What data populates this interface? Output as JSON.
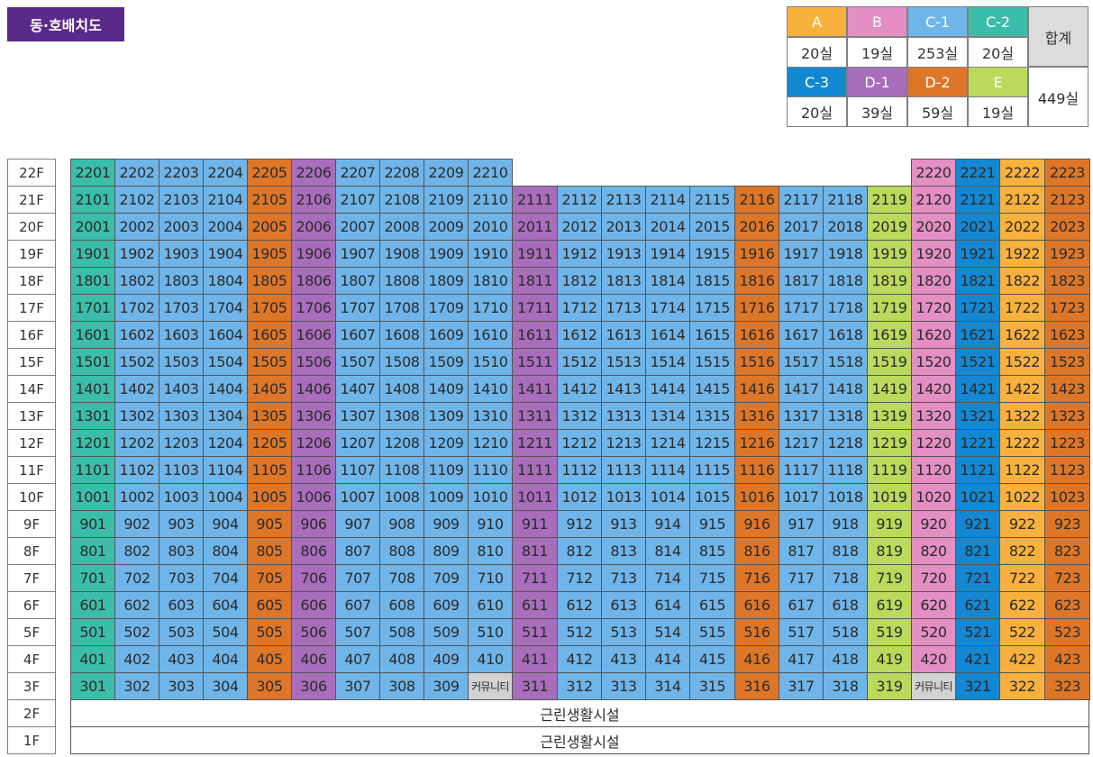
{
  "title": "동·호배치도",
  "colors": {
    "A": "#f9b13d",
    "B": "#e48fc3",
    "C-1": "#6fb5e9",
    "C-2": "#3bbea9",
    "C-3": "#1387d1",
    "D-1": "#a86dbb",
    "D-2": "#de7628",
    "E": "#bbd95b"
  },
  "legend": {
    "row1": [
      {
        "type": "A",
        "count": "20실"
      },
      {
        "type": "B",
        "count": "19실"
      },
      {
        "type": "C-1",
        "count": "253실"
      },
      {
        "type": "C-2",
        "count": "20실"
      }
    ],
    "row2": [
      {
        "type": "C-3",
        "count": "20실"
      },
      {
        "type": "D-1",
        "count": "39실"
      },
      {
        "type": "D-2",
        "count": "59실"
      },
      {
        "type": "E",
        "count": "19실"
      }
    ],
    "total_label": "합계",
    "total_value": "449실"
  },
  "floors": [
    "22F",
    "21F",
    "20F",
    "19F",
    "18F",
    "17F",
    "16F",
    "15F",
    "14F",
    "13F",
    "12F",
    "11F",
    "10F",
    "9F",
    "8F",
    "7F",
    "6F",
    "5F",
    "4F",
    "3F",
    "2F",
    "1F"
  ],
  "column_types": [
    "C-2",
    "C-1",
    "C-1",
    "C-1",
    "D-2",
    "D-1",
    "C-1",
    "C-1",
    "C-1",
    "C-1",
    "D-1",
    "C-1",
    "C-1",
    "C-1",
    "C-1",
    "D-2",
    "C-1",
    "C-1",
    "E",
    "B",
    "C-3",
    "A",
    "D-2"
  ],
  "unit_floors": [
    22,
    21,
    20,
    19,
    18,
    17,
    16,
    15,
    14,
    13,
    12,
    11,
    10,
    9,
    8,
    7,
    6,
    5,
    4,
    3
  ],
  "units": [
    [
      "2201",
      "2202",
      "2203",
      "2204",
      "2205",
      "2206",
      "2207",
      "2208",
      "2209",
      "2210",
      "",
      "",
      "",
      "",
      "",
      "",
      "",
      "",
      "",
      "2220",
      "2221",
      "2222",
      "2223"
    ],
    [
      "2101",
      "2102",
      "2103",
      "2104",
      "2105",
      "2106",
      "2107",
      "2108",
      "2109",
      "2110",
      "2111",
      "2112",
      "2113",
      "2114",
      "2115",
      "2116",
      "2117",
      "2118",
      "2119",
      "2120",
      "2121",
      "2122",
      "2123"
    ],
    [
      "2001",
      "2002",
      "2003",
      "2004",
      "2005",
      "2006",
      "2007",
      "2008",
      "2009",
      "2010",
      "2011",
      "2012",
      "2013",
      "2014",
      "2015",
      "2016",
      "2017",
      "2018",
      "2019",
      "2020",
      "2021",
      "2022",
      "2023"
    ],
    [
      "1901",
      "1902",
      "1903",
      "1904",
      "1905",
      "1906",
      "1907",
      "1908",
      "1909",
      "1910",
      "1911",
      "1912",
      "1913",
      "1914",
      "1915",
      "1916",
      "1917",
      "1918",
      "1919",
      "1920",
      "1921",
      "1922",
      "1923"
    ],
    [
      "1801",
      "1802",
      "1803",
      "1804",
      "1805",
      "1806",
      "1807",
      "1808",
      "1809",
      "1810",
      "1811",
      "1812",
      "1813",
      "1814",
      "1815",
      "1816",
      "1817",
      "1818",
      "1819",
      "1820",
      "1821",
      "1822",
      "1823"
    ],
    [
      "1701",
      "1702",
      "1703",
      "1704",
      "1705",
      "1706",
      "1707",
      "1708",
      "1709",
      "1710",
      "1711",
      "1712",
      "1713",
      "1714",
      "1715",
      "1716",
      "1717",
      "1718",
      "1719",
      "1720",
      "1721",
      "1722",
      "1723"
    ],
    [
      "1601",
      "1602",
      "1603",
      "1604",
      "1605",
      "1606",
      "1607",
      "1608",
      "1609",
      "1610",
      "1611",
      "1612",
      "1613",
      "1614",
      "1615",
      "1616",
      "1617",
      "1618",
      "1619",
      "1620",
      "1621",
      "1622",
      "1623"
    ],
    [
      "1501",
      "1502",
      "1503",
      "1504",
      "1505",
      "1506",
      "1507",
      "1508",
      "1509",
      "1510",
      "1511",
      "1512",
      "1513",
      "1514",
      "1515",
      "1516",
      "1517",
      "1518",
      "1519",
      "1520",
      "1521",
      "1522",
      "1523"
    ],
    [
      "1401",
      "1402",
      "1403",
      "1404",
      "1405",
      "1406",
      "1407",
      "1408",
      "1409",
      "1410",
      "1411",
      "1412",
      "1413",
      "1414",
      "1415",
      "1416",
      "1417",
      "1418",
      "1419",
      "1420",
      "1421",
      "1422",
      "1423"
    ],
    [
      "1301",
      "1302",
      "1303",
      "1304",
      "1305",
      "1306",
      "1307",
      "1308",
      "1309",
      "1310",
      "1311",
      "1312",
      "1313",
      "1314",
      "1315",
      "1316",
      "1317",
      "1318",
      "1319",
      "1320",
      "1321",
      "1322",
      "1323"
    ],
    [
      "1201",
      "1202",
      "1203",
      "1204",
      "1205",
      "1206",
      "1207",
      "1208",
      "1209",
      "1210",
      "1211",
      "1212",
      "1213",
      "1214",
      "1215",
      "1216",
      "1217",
      "1218",
      "1219",
      "1220",
      "1221",
      "1222",
      "1223"
    ],
    [
      "1101",
      "1102",
      "1103",
      "1104",
      "1105",
      "1106",
      "1107",
      "1108",
      "1109",
      "1110",
      "1111",
      "1112",
      "1113",
      "1114",
      "1115",
      "1116",
      "1117",
      "1118",
      "1119",
      "1120",
      "1121",
      "1122",
      "1123"
    ],
    [
      "1001",
      "1002",
      "1003",
      "1004",
      "1005",
      "1006",
      "1007",
      "1008",
      "1009",
      "1010",
      "1011",
      "1012",
      "1013",
      "1014",
      "1015",
      "1016",
      "1017",
      "1018",
      "1019",
      "1020",
      "1021",
      "1022",
      "1023"
    ],
    [
      "901",
      "902",
      "903",
      "904",
      "905",
      "906",
      "907",
      "908",
      "909",
      "910",
      "911",
      "912",
      "913",
      "914",
      "915",
      "916",
      "917",
      "918",
      "919",
      "920",
      "921",
      "922",
      "923"
    ],
    [
      "801",
      "802",
      "803",
      "804",
      "805",
      "806",
      "807",
      "808",
      "809",
      "810",
      "811",
      "812",
      "813",
      "814",
      "815",
      "816",
      "817",
      "818",
      "819",
      "820",
      "821",
      "822",
      "823"
    ],
    [
      "701",
      "702",
      "703",
      "704",
      "705",
      "706",
      "707",
      "708",
      "709",
      "710",
      "711",
      "712",
      "713",
      "714",
      "715",
      "716",
      "717",
      "718",
      "719",
      "720",
      "721",
      "722",
      "723"
    ],
    [
      "601",
      "602",
      "603",
      "604",
      "605",
      "606",
      "607",
      "608",
      "609",
      "610",
      "611",
      "612",
      "613",
      "614",
      "615",
      "616",
      "617",
      "618",
      "619",
      "620",
      "621",
      "622",
      "623"
    ],
    [
      "501",
      "502",
      "503",
      "504",
      "505",
      "506",
      "507",
      "508",
      "509",
      "510",
      "511",
      "512",
      "513",
      "514",
      "515",
      "516",
      "517",
      "518",
      "519",
      "520",
      "521",
      "522",
      "523"
    ],
    [
      "401",
      "402",
      "403",
      "404",
      "405",
      "406",
      "407",
      "408",
      "409",
      "410",
      "411",
      "412",
      "413",
      "414",
      "415",
      "416",
      "417",
      "418",
      "419",
      "420",
      "421",
      "422",
      "423"
    ],
    [
      "301",
      "302",
      "303",
      "304",
      "305",
      "306",
      "307",
      "308",
      "309",
      "커뮤니티",
      "311",
      "312",
      "313",
      "314",
      "315",
      "316",
      "317",
      "318",
      "319",
      "커뮤니티",
      "321",
      "322",
      "323"
    ]
  ],
  "community_label": "커뮤니티",
  "community_color": "#d2d2d2",
  "lower_floors": [
    {
      "floor": "2F",
      "label": "근린생활시설"
    },
    {
      "floor": "1F",
      "label": "근린생활시설"
    }
  ]
}
